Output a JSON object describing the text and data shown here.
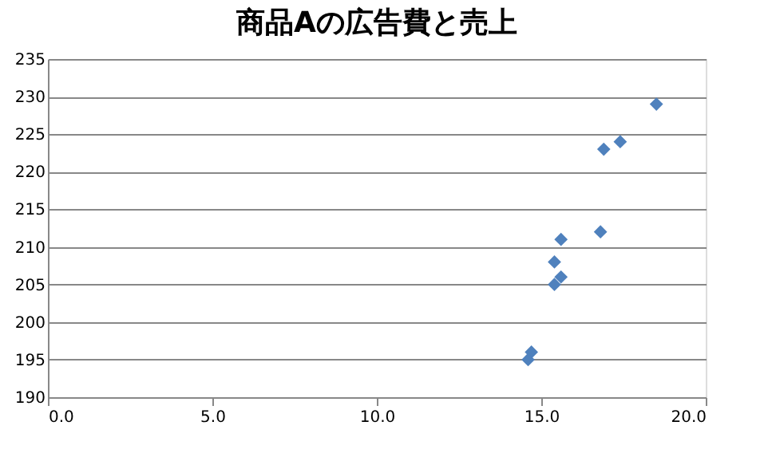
{
  "chart_data": {
    "type": "scatter",
    "title": "商品Aの広告費と売上",
    "x": [
      18.5,
      17.4,
      16.9,
      16.8,
      15.6,
      15.4,
      15.6,
      15.4,
      14.7,
      14.6
    ],
    "series": [
      {
        "color": "#4f81bd",
        "values": [
          229,
          224,
          223,
          212,
          211,
          208,
          206,
          205,
          196,
          195
        ]
      }
    ],
    "xlim": [
      0,
      20
    ],
    "xticks": [
      {
        "value": 0,
        "label": "0.0"
      },
      {
        "value": 5,
        "label": "5.0"
      },
      {
        "value": 10,
        "label": "10.0"
      },
      {
        "value": 15,
        "label": "15.0"
      },
      {
        "value": 20,
        "label": "20.0"
      }
    ],
    "ylim": [
      190,
      235
    ],
    "yticks": [
      190,
      195,
      200,
      205,
      210,
      215,
      220,
      225,
      230,
      235
    ],
    "grid": "y",
    "marker": "diamond",
    "legend": false
  }
}
